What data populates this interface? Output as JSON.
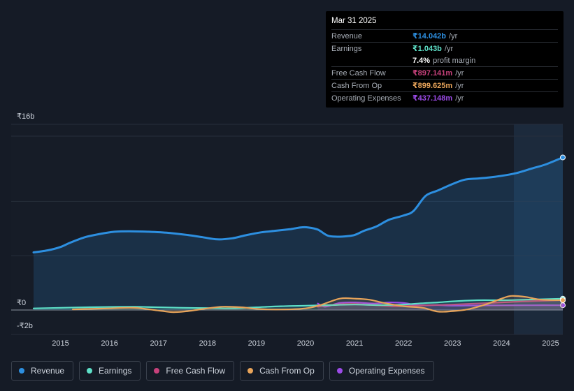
{
  "tooltip": {
    "date": "Mar 31 2025",
    "revenue": {
      "label": "Revenue",
      "value": "₹14.042b",
      "unit": "/yr"
    },
    "earnings": {
      "label": "Earnings",
      "value": "₹1.043b",
      "unit": "/yr"
    },
    "margin": {
      "value": "7.4%",
      "unit": "profit margin"
    },
    "fcf": {
      "label": "Free Cash Flow",
      "value": "₹897.141m",
      "unit": "/yr"
    },
    "cfo": {
      "label": "Cash From Op",
      "value": "₹899.625m",
      "unit": "/yr"
    },
    "opex": {
      "label": "Operating Expenses",
      "value": "₹437.148m",
      "unit": "/yr"
    }
  },
  "legend": [
    {
      "label": "Revenue",
      "color": "#2d8fe0"
    },
    {
      "label": "Earnings",
      "color": "#5ee0c8"
    },
    {
      "label": "Free Cash Flow",
      "color": "#c7417b"
    },
    {
      "label": "Cash From Op",
      "color": "#e8a45a"
    },
    {
      "label": "Operating Expenses",
      "color": "#9c4be8"
    }
  ],
  "chart_data": {
    "type": "line",
    "title": "",
    "y_tick_labels": [
      "₹16b",
      "₹0",
      "-₹2b"
    ],
    "ylim": [
      -2,
      16
    ],
    "xlim": [
      2014.45,
      2025.25
    ],
    "x_ticks": [
      2015,
      2016,
      2017,
      2018,
      2019,
      2020,
      2021,
      2022,
      2023,
      2024,
      2025
    ],
    "highlight_start": 2024.25,
    "series": [
      {
        "name": "Revenue",
        "color": "#2d8fe0",
        "area": true,
        "x": [
          2014.45,
          2014.75,
          2015.0,
          2015.2,
          2015.5,
          2015.8,
          2016.1,
          2016.4,
          2016.8,
          2017.2,
          2017.6,
          2017.9,
          2018.2,
          2018.5,
          2018.8,
          2019.1,
          2019.4,
          2019.7,
          2019.9,
          2020.05,
          2020.25,
          2020.45,
          2020.65,
          2020.85,
          2021.0,
          2021.2,
          2021.45,
          2021.7,
          2022.0,
          2022.2,
          2022.45,
          2022.7,
          2023.0,
          2023.25,
          2023.5,
          2023.75,
          2024.0,
          2024.3,
          2024.6,
          2024.9,
          2025.25
        ],
        "values": [
          5.3,
          5.5,
          5.8,
          6.2,
          6.7,
          7.0,
          7.2,
          7.25,
          7.2,
          7.1,
          6.9,
          6.7,
          6.5,
          6.6,
          6.9,
          7.15,
          7.3,
          7.45,
          7.6,
          7.6,
          7.4,
          6.85,
          6.75,
          6.8,
          6.9,
          7.3,
          7.7,
          8.3,
          8.7,
          9.1,
          10.5,
          11.0,
          11.6,
          12.0,
          12.1,
          12.2,
          12.35,
          12.6,
          13.0,
          13.4,
          14.042
        ]
      },
      {
        "name": "Earnings",
        "color": "#5ee0c8",
        "x": [
          2014.45,
          2015.0,
          2015.5,
          2016.0,
          2016.5,
          2017.0,
          2017.5,
          2018.0,
          2018.5,
          2019.0,
          2019.5,
          2020.0,
          2020.5,
          2021.0,
          2021.5,
          2022.0,
          2022.3,
          2022.7,
          2023.0,
          2023.5,
          2024.0,
          2024.5,
          2025.25
        ],
        "values": [
          0.15,
          0.2,
          0.25,
          0.28,
          0.3,
          0.25,
          0.2,
          0.18,
          0.15,
          0.25,
          0.35,
          0.4,
          0.45,
          0.5,
          0.45,
          0.5,
          0.6,
          0.7,
          0.8,
          0.9,
          0.9,
          0.95,
          1.043
        ]
      },
      {
        "name": "Free Cash Flow",
        "color": "#c7417b",
        "x": [
          2020.25,
          2020.6,
          2021.0,
          2021.4,
          2021.8,
          2022.2,
          2022.6,
          2023.0,
          2023.5,
          2024.0,
          2024.5,
          2025.25
        ],
        "values": [
          0.3,
          0.5,
          0.55,
          0.45,
          0.35,
          0.4,
          0.45,
          0.5,
          0.6,
          0.7,
          0.8,
          0.897
        ]
      },
      {
        "name": "Cash From Op",
        "color": "#e8a45a",
        "x": [
          2015.25,
          2015.6,
          2016.0,
          2016.5,
          2017.0,
          2017.3,
          2017.6,
          2018.0,
          2018.3,
          2018.7,
          2019.0,
          2019.5,
          2020.0,
          2020.3,
          2020.7,
          2021.0,
          2021.3,
          2021.6,
          2022.0,
          2022.4,
          2022.7,
          2023.0,
          2023.3,
          2023.7,
          2024.0,
          2024.2,
          2024.5,
          2024.8,
          2025.25
        ],
        "values": [
          0.05,
          0.1,
          0.15,
          0.2,
          -0.05,
          -0.2,
          -0.1,
          0.15,
          0.3,
          0.25,
          0.1,
          0.05,
          0.15,
          0.45,
          1.05,
          1.05,
          0.95,
          0.65,
          0.35,
          0.2,
          -0.15,
          -0.1,
          0.05,
          0.55,
          1.05,
          1.3,
          1.2,
          0.95,
          0.9
        ]
      },
      {
        "name": "Operating Expenses",
        "color": "#9c4be8",
        "x": [
          2020.25,
          2020.4,
          2020.7,
          2021.0,
          2021.4,
          2021.7,
          2022.0,
          2022.3,
          2022.7,
          2023.0,
          2023.5,
          2024.0,
          2024.5,
          2025.25
        ],
        "values": [
          0.6,
          0.3,
          0.65,
          0.7,
          0.6,
          0.7,
          0.65,
          0.45,
          0.45,
          0.4,
          0.42,
          0.43,
          0.44,
          0.437
        ]
      }
    ]
  }
}
